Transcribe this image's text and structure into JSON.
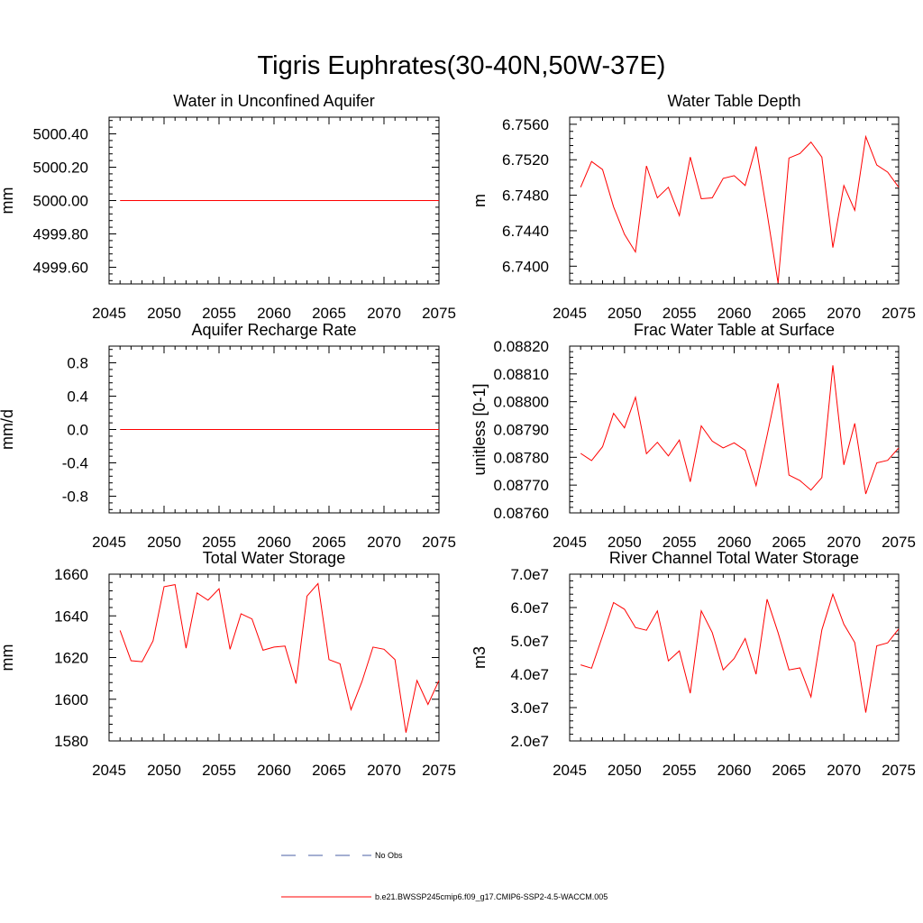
{
  "title": "Tigris Euphrates(30-40N,50W-37E)",
  "colors": {
    "model_line": "#ff0000",
    "obs_line": "#4a5fa5",
    "axis": "#000000"
  },
  "legend": {
    "obs_label": "No Obs",
    "model_label": "b.e21.BWSSP245cmip6.f09_g17.CMIP6-SSP2-4.5-WACCM.005"
  },
  "chart_data": [
    {
      "type": "line",
      "title": "Water in Unconfined Aquifer",
      "ylabel": "mm",
      "xlim": [
        2045,
        2075
      ],
      "ylim": [
        4999.5,
        5000.5
      ],
      "xticks": [
        2045,
        2050,
        2055,
        2060,
        2065,
        2070,
        2075
      ],
      "xtick_labels": [
        "2045",
        "2050",
        "2055",
        "2060",
        "2065",
        "2070",
        "2075"
      ],
      "yticks": [
        4999.6,
        4999.8,
        5000.0,
        5000.2,
        5000.4
      ],
      "ytick_labels": [
        "4999.60",
        "4999.80",
        "5000.00",
        "5000.20",
        "5000.40"
      ],
      "x": [
        2046,
        2047,
        2048,
        2049,
        2050,
        2051,
        2052,
        2053,
        2054,
        2055,
        2056,
        2057,
        2058,
        2059,
        2060,
        2061,
        2062,
        2063,
        2064,
        2065,
        2066,
        2067,
        2068,
        2069,
        2070,
        2071,
        2072,
        2073,
        2074,
        2075
      ],
      "series": [
        {
          "values": [
            5000,
            5000,
            5000,
            5000,
            5000,
            5000,
            5000,
            5000,
            5000,
            5000,
            5000,
            5000,
            5000,
            5000,
            5000,
            5000,
            5000,
            5000,
            5000,
            5000,
            5000,
            5000,
            5000,
            5000,
            5000,
            5000,
            5000,
            5000,
            5000,
            5000
          ]
        }
      ]
    },
    {
      "type": "line",
      "title": "Water Table Depth",
      "ylabel": "m",
      "xlim": [
        2045,
        2075
      ],
      "ylim": [
        6.738,
        6.7568
      ],
      "xticks": [
        2045,
        2050,
        2055,
        2060,
        2065,
        2070,
        2075
      ],
      "xtick_labels": [
        "2045",
        "2050",
        "2055",
        "2060",
        "2065",
        "2070",
        "2075"
      ],
      "yticks": [
        6.74,
        6.744,
        6.748,
        6.752,
        6.756
      ],
      "ytick_labels": [
        "6.7400",
        "6.7440",
        "6.7480",
        "6.7520",
        "6.7560"
      ],
      "x": [
        2046,
        2047,
        2048,
        2049,
        2050,
        2051,
        2052,
        2053,
        2054,
        2055,
        2056,
        2057,
        2058,
        2059,
        2060,
        2061,
        2062,
        2063,
        2064,
        2065,
        2066,
        2067,
        2068,
        2069,
        2070,
        2071,
        2072,
        2073,
        2074,
        2075
      ],
      "series": [
        {
          "values": [
            6.7489,
            6.7518,
            6.7509,
            6.7467,
            6.7436,
            6.7416,
            6.7513,
            6.7477,
            6.7489,
            6.7457,
            6.7523,
            6.7476,
            6.7477,
            6.7499,
            6.7502,
            6.7491,
            6.7535,
            6.746,
            6.7381,
            6.7522,
            6.7527,
            6.754,
            6.7523,
            6.7421,
            6.7491,
            6.7463,
            6.7546,
            6.7514,
            6.7506,
            6.7489
          ]
        }
      ]
    },
    {
      "type": "line",
      "title": "Aquifer Recharge Rate",
      "ylabel": "mm/d",
      "xlim": [
        2045,
        2075
      ],
      "ylim": [
        -1.0,
        1.0
      ],
      "xticks": [
        2045,
        2050,
        2055,
        2060,
        2065,
        2070,
        2075
      ],
      "xtick_labels": [
        "2045",
        "2050",
        "2055",
        "2060",
        "2065",
        "2070",
        "2075"
      ],
      "yticks": [
        -0.8,
        -0.4,
        0.0,
        0.4,
        0.8
      ],
      "ytick_labels": [
        "-0.8",
        "-0.4",
        "0.0",
        "0.4",
        "0.8"
      ],
      "x": [
        2046,
        2047,
        2048,
        2049,
        2050,
        2051,
        2052,
        2053,
        2054,
        2055,
        2056,
        2057,
        2058,
        2059,
        2060,
        2061,
        2062,
        2063,
        2064,
        2065,
        2066,
        2067,
        2068,
        2069,
        2070,
        2071,
        2072,
        2073,
        2074,
        2075
      ],
      "series": [
        {
          "values": [
            0,
            0,
            0,
            0,
            0,
            0,
            0,
            0,
            0,
            0,
            0,
            0,
            0,
            0,
            0,
            0,
            0,
            0,
            0,
            0,
            0,
            0,
            0,
            0,
            0,
            0,
            0,
            0,
            0,
            0
          ]
        }
      ]
    },
    {
      "type": "line",
      "title": "Frac Water Table at Surface",
      "ylabel": "unitless [0-1]",
      "xlim": [
        2045,
        2075
      ],
      "ylim": [
        0.0876,
        0.0882
      ],
      "xticks": [
        2045,
        2050,
        2055,
        2060,
        2065,
        2070,
        2075
      ],
      "xtick_labels": [
        "2045",
        "2050",
        "2055",
        "2060",
        "2065",
        "2070",
        "2075"
      ],
      "yticks": [
        0.0876,
        0.0877,
        0.0878,
        0.0879,
        0.088,
        0.0881,
        0.0882
      ],
      "ytick_labels": [
        "0.08760",
        "0.08770",
        "0.08780",
        "0.08790",
        "0.08800",
        "0.08810",
        "0.08820"
      ],
      "x": [
        2046,
        2047,
        2048,
        2049,
        2050,
        2051,
        2052,
        2053,
        2054,
        2055,
        2056,
        2057,
        2058,
        2059,
        2060,
        2061,
        2062,
        2063,
        2064,
        2065,
        2066,
        2067,
        2068,
        2069,
        2070,
        2071,
        2072,
        2073,
        2074,
        2075
      ],
      "series": [
        {
          "values": [
            0.087814,
            0.087788,
            0.087838,
            0.087958,
            0.087906,
            0.088016,
            0.087813,
            0.087854,
            0.087805,
            0.087862,
            0.087712,
            0.087913,
            0.087858,
            0.087834,
            0.087852,
            0.087825,
            0.087698,
            0.087878,
            0.088066,
            0.087736,
            0.087716,
            0.087682,
            0.087727,
            0.088131,
            0.087773,
            0.087922,
            0.087668,
            0.08778,
            0.087789,
            0.087834
          ]
        }
      ]
    },
    {
      "type": "line",
      "title": "Total Water Storage",
      "ylabel": "mm",
      "xlim": [
        2045,
        2075
      ],
      "ylim": [
        1580,
        1660
      ],
      "xticks": [
        2045,
        2050,
        2055,
        2060,
        2065,
        2070,
        2075
      ],
      "xtick_labels": [
        "2045",
        "2050",
        "2055",
        "2060",
        "2065",
        "2070",
        "2075"
      ],
      "yticks": [
        1580,
        1600,
        1620,
        1640,
        1660
      ],
      "ytick_labels": [
        "1580",
        "1600",
        "1620",
        "1640",
        "1660"
      ],
      "x": [
        2046,
        2047,
        2048,
        2049,
        2050,
        2051,
        2052,
        2053,
        2054,
        2055,
        2056,
        2057,
        2058,
        2059,
        2060,
        2061,
        2062,
        2063,
        2064,
        2065,
        2066,
        2067,
        2068,
        2069,
        2070,
        2071,
        2072,
        2073,
        2074,
        2075
      ],
      "series": [
        {
          "values": [
            1633,
            1618.5,
            1618,
            1628,
            1654,
            1655,
            1624.5,
            1651,
            1647.5,
            1653,
            1624,
            1641,
            1638.5,
            1623.5,
            1625,
            1625.5,
            1607.5,
            1649.5,
            1655.5,
            1619,
            1617,
            1595,
            1608.5,
            1625,
            1624,
            1619,
            1584,
            1609,
            1597.5,
            1609
          ]
        }
      ]
    },
    {
      "type": "line",
      "title": "River Channel Total Water Storage",
      "ylabel": "m3",
      "xlim": [
        2045,
        2075
      ],
      "ylim": [
        20000000.0,
        70000000.0
      ],
      "xticks": [
        2045,
        2050,
        2055,
        2060,
        2065,
        2070,
        2075
      ],
      "xtick_labels": [
        "2045",
        "2050",
        "2055",
        "2060",
        "2065",
        "2070",
        "2075"
      ],
      "yticks": [
        20000000.0,
        30000000.0,
        40000000.0,
        50000000.0,
        60000000.0,
        70000000.0
      ],
      "ytick_labels": [
        "2.0e7",
        "3.0e7",
        "4.0e7",
        "5.0e7",
        "6.0e7",
        "7.0e7"
      ],
      "x": [
        2046,
        2047,
        2048,
        2049,
        2050,
        2051,
        2052,
        2053,
        2054,
        2055,
        2056,
        2057,
        2058,
        2059,
        2060,
        2061,
        2062,
        2063,
        2064,
        2065,
        2066,
        2067,
        2068,
        2069,
        2070,
        2071,
        2072,
        2073,
        2074,
        2075
      ],
      "series": [
        {
          "values": [
            42800000,
            41800000,
            51500000,
            61500000,
            59500000,
            54000000,
            53200000,
            59000000,
            44000000,
            47000000,
            34300000,
            59000000,
            52500000,
            41300000,
            44700000,
            50700000,
            40000000,
            62500000,
            52500000,
            41300000,
            41900000,
            33200000,
            53300000,
            64000000,
            55000000,
            49500000,
            28500000,
            48500000,
            49400000,
            53600000
          ]
        }
      ]
    }
  ]
}
